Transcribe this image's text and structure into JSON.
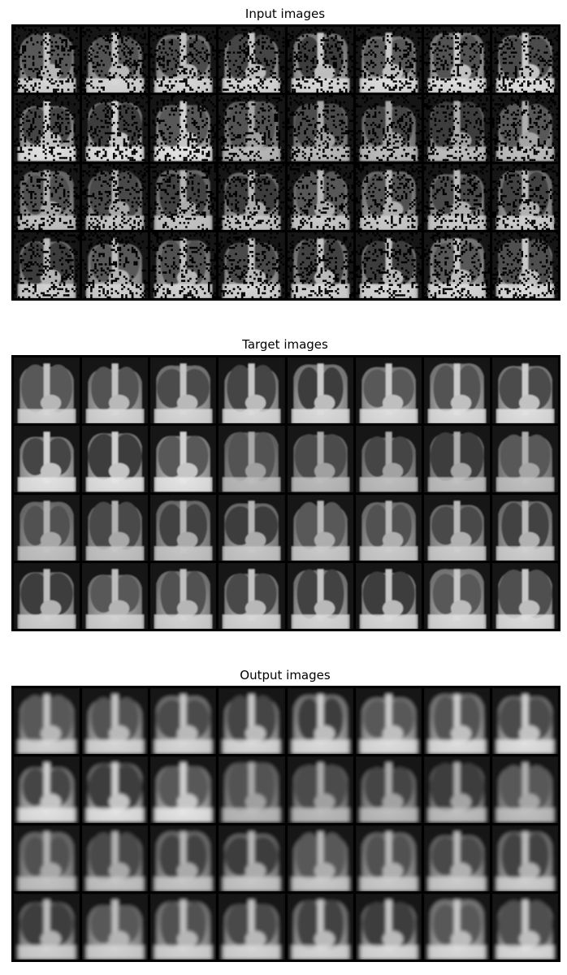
{
  "figure": {
    "panels": [
      {
        "title": "Input images",
        "kind": "noisy",
        "rows": 4,
        "cols": 8
      },
      {
        "title": "Target images",
        "kind": "target",
        "rows": 4,
        "cols": 8
      },
      {
        "title": "Output images",
        "kind": "output",
        "rows": 4,
        "cols": 8
      }
    ]
  }
}
